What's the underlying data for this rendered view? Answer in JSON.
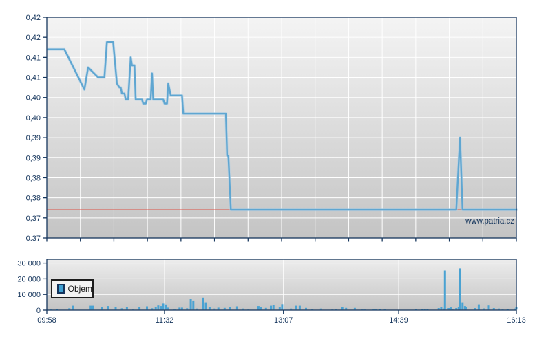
{
  "watermark": "www.patria.cz",
  "colors": {
    "axis": "#16365d",
    "label": "#16365d",
    "grid": "#ffffff",
    "price_line": "#5fa6d1",
    "price_line_halo": "#a9cde7",
    "reference_line": "#dd5146",
    "volume_bar": "#4aa2d2",
    "plot_gradient_top": "#f4f4f4",
    "plot_gradient_bottom": "#c4c4c4",
    "volume_gradient_top": "#ededed",
    "volume_gradient_bottom": "#c4c4c4",
    "legend_background": "#f2f2f2",
    "legend_border": "#1c1c1c",
    "legend_swatch": "#3d9fd1"
  },
  "chart_data": [
    {
      "type": "line",
      "name": "price",
      "x_range": [
        "09:58",
        "16:13"
      ],
      "x_ticks": [
        "09:58",
        "11:32",
        "13:07",
        "14:39",
        "16:13"
      ],
      "y_range": [
        0.37,
        0.425
      ],
      "y_tick_step": 0.005,
      "y_tick_labels": [
        "0,42",
        "0,42",
        "0,41",
        "0,41",
        "0,40",
        "0,40",
        "0,39",
        "0,39",
        "0,38",
        "0,38",
        "0,37",
        "0.37"
      ],
      "grid": "on",
      "vertical_divisions": 14,
      "reference_line": {
        "value": 0.377,
        "color": "#dd5146"
      },
      "series": [
        {
          "name": "price",
          "points": [
            [
              "09:59",
              0.417
            ],
            [
              "10:12",
              0.417
            ],
            [
              "10:28",
              0.407
            ],
            [
              "10:31",
              0.4125
            ],
            [
              "10:39",
              0.41
            ],
            [
              "10:44",
              0.41
            ],
            [
              "10:46",
              0.4188
            ],
            [
              "10:51",
              0.4188
            ],
            [
              "10:54",
              0.4085
            ],
            [
              "10:56",
              0.4075
            ],
            [
              "10:57",
              0.4075
            ],
            [
              "10:58",
              0.406
            ],
            [
              "11:00",
              0.406
            ],
            [
              "11:01",
              0.4045
            ],
            [
              "11:03",
              0.4045
            ],
            [
              "11:05",
              0.415
            ],
            [
              "11:06",
              0.413
            ],
            [
              "11:08",
              0.413
            ],
            [
              "11:09",
              0.4045
            ],
            [
              "11:14",
              0.4045
            ],
            [
              "11:15",
              0.4035
            ],
            [
              "11:17",
              0.4035
            ],
            [
              "11:18",
              0.4045
            ],
            [
              "11:21",
              0.4045
            ],
            [
              "11:22",
              0.411
            ],
            [
              "11:23",
              0.4045
            ],
            [
              "11:31",
              0.4045
            ],
            [
              "11:32",
              0.4035
            ],
            [
              "11:34",
              0.4035
            ],
            [
              "11:35",
              0.4085
            ],
            [
              "11:37",
              0.4055
            ],
            [
              "11:46",
              0.4055
            ],
            [
              "11:47",
              0.401
            ],
            [
              "12:21",
              0.401
            ],
            [
              "12:22",
              0.3905
            ],
            [
              "12:23",
              0.3905
            ],
            [
              "12:25",
              0.377
            ],
            [
              "15:25",
              0.377
            ],
            [
              "15:28",
              0.395
            ],
            [
              "15:30",
              0.377
            ],
            [
              "16:13",
              0.377
            ]
          ]
        }
      ]
    },
    {
      "type": "bar",
      "name": "volume",
      "legend": "Objem",
      "y_ticks": [
        0,
        10000,
        20000,
        30000
      ],
      "y_tick_labels": [
        "0",
        "10 000",
        "20 000",
        "30 000"
      ],
      "grid": "on",
      "bars": [
        [
          "10:01",
          800
        ],
        [
          "10:06",
          600
        ],
        [
          "10:16",
          1200
        ],
        [
          "10:19",
          2800
        ],
        [
          "10:33",
          2800
        ],
        [
          "10:35",
          2800
        ],
        [
          "10:42",
          1800
        ],
        [
          "10:47",
          2600
        ],
        [
          "10:53",
          1800
        ],
        [
          "10:58",
          1200
        ],
        [
          "11:02",
          2200
        ],
        [
          "11:07",
          800
        ],
        [
          "11:12",
          1800
        ],
        [
          "11:18",
          2400
        ],
        [
          "11:22",
          1200
        ],
        [
          "11:25",
          2200
        ],
        [
          "11:27",
          3000
        ],
        [
          "11:29",
          2600
        ],
        [
          "11:31",
          4200
        ],
        [
          "11:33",
          3600
        ],
        [
          "11:35",
          1600
        ],
        [
          "11:40",
          800
        ],
        [
          "11:44",
          1600
        ],
        [
          "11:46",
          1600
        ],
        [
          "11:50",
          1200
        ],
        [
          "11:53",
          7000
        ],
        [
          "11:55",
          6200
        ],
        [
          "11:58",
          1000
        ],
        [
          "12:03",
          8000
        ],
        [
          "12:05",
          5000
        ],
        [
          "12:08",
          2000
        ],
        [
          "12:12",
          1000
        ],
        [
          "12:15",
          1600
        ],
        [
          "12:20",
          1400
        ],
        [
          "12:24",
          2200
        ],
        [
          "12:30",
          2400
        ],
        [
          "12:35",
          1000
        ],
        [
          "12:39",
          800
        ],
        [
          "12:47",
          2600
        ],
        [
          "12:49",
          2000
        ],
        [
          "12:53",
          1400
        ],
        [
          "12:57",
          2800
        ],
        [
          "12:59",
          3200
        ],
        [
          "13:04",
          2000
        ],
        [
          "13:06",
          3800
        ],
        [
          "13:13",
          1000
        ],
        [
          "13:17",
          2800
        ],
        [
          "13:20",
          2800
        ],
        [
          "13:25",
          1400
        ],
        [
          "13:30",
          700
        ],
        [
          "13:37",
          1000
        ],
        [
          "13:46",
          800
        ],
        [
          "13:49",
          700
        ],
        [
          "13:54",
          1800
        ],
        [
          "13:57",
          1400
        ],
        [
          "14:04",
          1400
        ],
        [
          "14:10",
          800
        ],
        [
          "14:12",
          800
        ],
        [
          "14:19",
          700
        ],
        [
          "14:21",
          700
        ],
        [
          "14:24",
          500
        ],
        [
          "14:28",
          700
        ],
        [
          "14:53",
          500
        ],
        [
          "14:58",
          600
        ],
        [
          "15:00",
          500
        ],
        [
          "15:02",
          500
        ],
        [
          "15:11",
          1300
        ],
        [
          "15:13",
          2100
        ],
        [
          "15:15",
          1000
        ],
        [
          "15:16",
          25200
        ],
        [
          "15:19",
          1300
        ],
        [
          "15:21",
          1700
        ],
        [
          "15:22",
          800
        ],
        [
          "15:25",
          1300
        ],
        [
          "15:27",
          1900
        ],
        [
          "15:28",
          26600
        ],
        [
          "15:30",
          5000
        ],
        [
          "15:32",
          2600
        ],
        [
          "15:33",
          2200
        ],
        [
          "15:40",
          1300
        ],
        [
          "15:43",
          3700
        ],
        [
          "15:47",
          1100
        ],
        [
          "15:51",
          3000
        ],
        [
          "15:55",
          1300
        ],
        [
          "15:59",
          1000
        ],
        [
          "16:02",
          800
        ],
        [
          "16:06",
          600
        ],
        [
          "16:12",
          1000
        ],
        [
          "16:13",
          1900
        ]
      ]
    }
  ]
}
